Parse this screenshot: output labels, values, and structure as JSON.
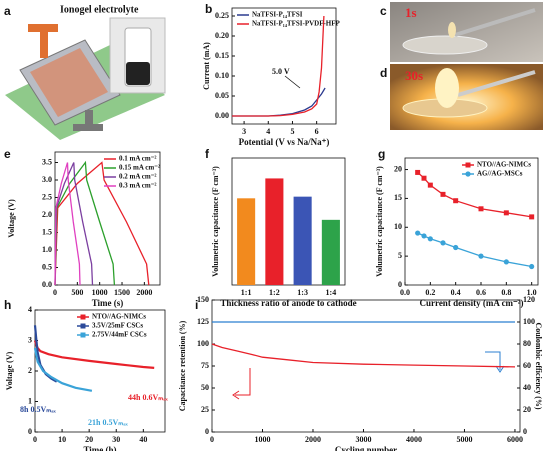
{
  "figure": {
    "a_label": "a",
    "a_title": "Ionogel electrolyte",
    "c_label": "c",
    "c_time": "1s",
    "d_label": "d",
    "d_time": "30s"
  },
  "chart_data": [
    {
      "panel": "b",
      "type": "line",
      "xlabel": "Potential (V vs Na/Na⁺)",
      "ylabel": "Current (mA)",
      "legend": "upper left",
      "xlim": [
        2.5,
        6.8
      ],
      "xticks": [
        3,
        4,
        5,
        6
      ],
      "ylim": [
        -0.02,
        0.27
      ],
      "yticks": [
        {
          "value": 0,
          "label": "0.00"
        },
        0.05,
        {
          "value": 0.1,
          "label": "0.10"
        },
        0.15,
        {
          "value": 0.2,
          "label": "0.20"
        },
        0.25
      ],
      "annotations": [
        "5.0 V"
      ],
      "series": [
        {
          "name": "NaTFSI-P₁₄TFSI",
          "color": "#2b3a8f",
          "x": [
            2.5,
            3,
            3.5,
            4,
            4.5,
            5,
            5.5,
            5.8,
            6,
            6.2,
            6.35
          ],
          "values": [
            0,
            0,
            0,
            0,
            0.002,
            0.006,
            0.015,
            0.025,
            0.04,
            0.055,
            0.07
          ]
        },
        {
          "name": "NaTFSI-P₁₄TFSI-PVDF-HFP",
          "color": "#e8212a",
          "x": [
            2.5,
            3,
            3.5,
            4,
            4.5,
            5,
            5.5,
            5.8,
            6,
            6.1,
            6.2,
            6.3
          ],
          "values": [
            0,
            0,
            0,
            0,
            0.001,
            0.004,
            0.01,
            0.018,
            0.03,
            0.06,
            0.12,
            0.25
          ]
        }
      ]
    },
    {
      "panel": "e",
      "type": "line",
      "xlabel": "Time (s)",
      "ylabel": "Voltage (V)",
      "legend": "upper right",
      "xlim": [
        0,
        2350
      ],
      "xticks": [
        0,
        500,
        1000,
        1500,
        2000
      ],
      "ylim": [
        0,
        3.8
      ],
      "yticks": [
        {
          "value": 0,
          "label": "0.0"
        },
        0.5,
        {
          "value": 1,
          "label": "1.0"
        },
        1.5,
        {
          "value": 2,
          "label": "2.0"
        },
        2.5,
        {
          "value": 3,
          "label": "3.0"
        },
        3.5
      ],
      "series": [
        {
          "name": "0.1 mA cm⁻²",
          "color": "#e8212a",
          "x": [
            0,
            60,
            500,
            1050,
            1100,
            1600,
            2050,
            2100
          ],
          "values": [
            0,
            2.2,
            2.9,
            3.5,
            3.0,
            1.8,
            0.6,
            0
          ]
        },
        {
          "name": "0.15 mA cm⁻²",
          "color": "#2ca02c",
          "x": [
            0,
            40,
            330,
            680,
            710,
            1000,
            1300,
            1330
          ],
          "values": [
            0,
            2.2,
            2.9,
            3.5,
            3.0,
            1.8,
            0.6,
            0
          ]
        },
        {
          "name": "0.2 mA cm⁻²",
          "color": "#7b3fa0",
          "x": [
            0,
            30,
            210,
            420,
            440,
            620,
            820,
            840
          ],
          "values": [
            0,
            2.2,
            2.9,
            3.5,
            3.0,
            1.8,
            0.6,
            0
          ]
        },
        {
          "name": "0.3 mA cm⁻²",
          "color": "#e040c0",
          "x": [
            0,
            20,
            140,
            280,
            295,
            410,
            545,
            560
          ],
          "values": [
            0,
            2.2,
            2.9,
            3.5,
            3.0,
            1.8,
            0.6,
            0
          ]
        }
      ]
    },
    {
      "panel": "f",
      "type": "bar",
      "xlabel": "Thickness ratio of anode to cathode",
      "ylabel": "Volumetric capacitance (F cm⁻³)",
      "categories": [
        "1:1",
        "1:2",
        "1:3",
        "1:4"
      ],
      "values": [
        15.7,
        19.3,
        16,
        11.8
      ],
      "colors": [
        "#f28a1e",
        "#e8212a",
        "#3b55b5",
        "#2da34a"
      ],
      "ylim": [
        0,
        23
      ]
    },
    {
      "panel": "g",
      "type": "line",
      "xlabel": "Current density (mA cm⁻²)",
      "ylabel": "Volumetric capacitance (F cm⁻³)",
      "legend": "upper right",
      "xlim": [
        0,
        1.05
      ],
      "xticks": [
        {
          "value": 0,
          "label": "0.0"
        },
        0.2,
        0.4,
        0.6,
        0.8,
        {
          "value": 1,
          "label": "1.0"
        }
      ],
      "ylim": [
        0,
        22
      ],
      "yticks": [
        0,
        5,
        10,
        15,
        20
      ],
      "series": [
        {
          "name": "NTO//AG-NIMCs",
          "color": "#e8212a",
          "marker": "square",
          "x": [
            0.1,
            0.15,
            0.2,
            0.3,
            0.4,
            0.6,
            0.8,
            1.0
          ],
          "values": [
            19.5,
            18.5,
            17.3,
            15.7,
            14.6,
            13.2,
            12.5,
            11.8
          ]
        },
        {
          "name": "AG//AG-MSCs",
          "color": "#3aa3d8",
          "marker": "circle",
          "x": [
            0.1,
            0.15,
            0.2,
            0.3,
            0.4,
            0.6,
            0.8,
            1.0
          ],
          "values": [
            9.0,
            8.5,
            8.0,
            7.3,
            6.5,
            5.0,
            4.0,
            3.2
          ]
        }
      ]
    },
    {
      "panel": "h",
      "type": "line",
      "xlabel": "Time (h)",
      "ylabel": "Voltage (V)",
      "legend": "upper right",
      "xlim": [
        0,
        48
      ],
      "xticks": [
        0,
        10,
        20,
        30,
        40
      ],
      "ylim": [
        0,
        4
      ],
      "yticks": [
        0,
        1,
        2,
        3,
        4
      ],
      "annotations": [
        "44h 0.6Vₘₐₓ",
        "8h 0.5Vₘₐₓ",
        "21h 0.5Vₘₐₓ"
      ],
      "series": [
        {
          "name": "NTO//AG-NIMCs",
          "color": "#e8212a",
          "marker": "square",
          "x": [
            0,
            0.5,
            1,
            2,
            5,
            10,
            20,
            30,
            40,
            44
          ],
          "values": [
            3.0,
            2.85,
            2.75,
            2.65,
            2.55,
            2.45,
            2.33,
            2.23,
            2.13,
            2.1
          ]
        },
        {
          "name": "3.5V/25mF  CSCs",
          "color": "#2b4a9a",
          "marker": "square",
          "x": [
            0,
            0.5,
            1,
            2,
            4,
            6,
            8
          ],
          "values": [
            3.5,
            3.0,
            2.6,
            2.2,
            1.9,
            1.75,
            1.65
          ]
        },
        {
          "name": "2.75V/44mF  CSCs",
          "color": "#3aa3d8",
          "marker": "square",
          "x": [
            0,
            0.5,
            1,
            3,
            6,
            10,
            15,
            21
          ],
          "values": [
            2.75,
            2.5,
            2.3,
            2.0,
            1.8,
            1.6,
            1.45,
            1.35
          ]
        }
      ]
    },
    {
      "panel": "i",
      "type": "line",
      "xlabel": "Cycling number",
      "ylabel": "Capacitance retention (%)",
      "y2label": "Coulombic efficiency (%)",
      "xlim": [
        0,
        6100
      ],
      "xticks": [
        0,
        1000,
        2000,
        3000,
        4000,
        5000,
        6000
      ],
      "ylim": [
        0,
        150
      ],
      "yticks": [
        0,
        25,
        50,
        75,
        100,
        125,
        150
      ],
      "y2lim": [
        0,
        120
      ],
      "y2ticks": [
        0,
        20,
        40,
        60,
        80,
        100,
        120
      ],
      "series": [
        {
          "name": "Capacitance retention",
          "color": "#e8212a",
          "x": [
            0,
            200,
            500,
            800,
            1000,
            1500,
            2000,
            3000,
            4000,
            5000,
            6000
          ],
          "values": [
            100,
            96,
            92,
            88,
            85,
            82,
            79,
            77,
            76,
            75,
            74
          ]
        },
        {
          "name": "Coulombic efficiency",
          "color": "#2b7fd0",
          "axis": "y2",
          "x": [
            0,
            1000,
            2000,
            3000,
            4000,
            5000,
            6000
          ],
          "values": [
            100,
            100,
            100,
            100,
            100,
            100,
            100
          ]
        }
      ]
    }
  ]
}
